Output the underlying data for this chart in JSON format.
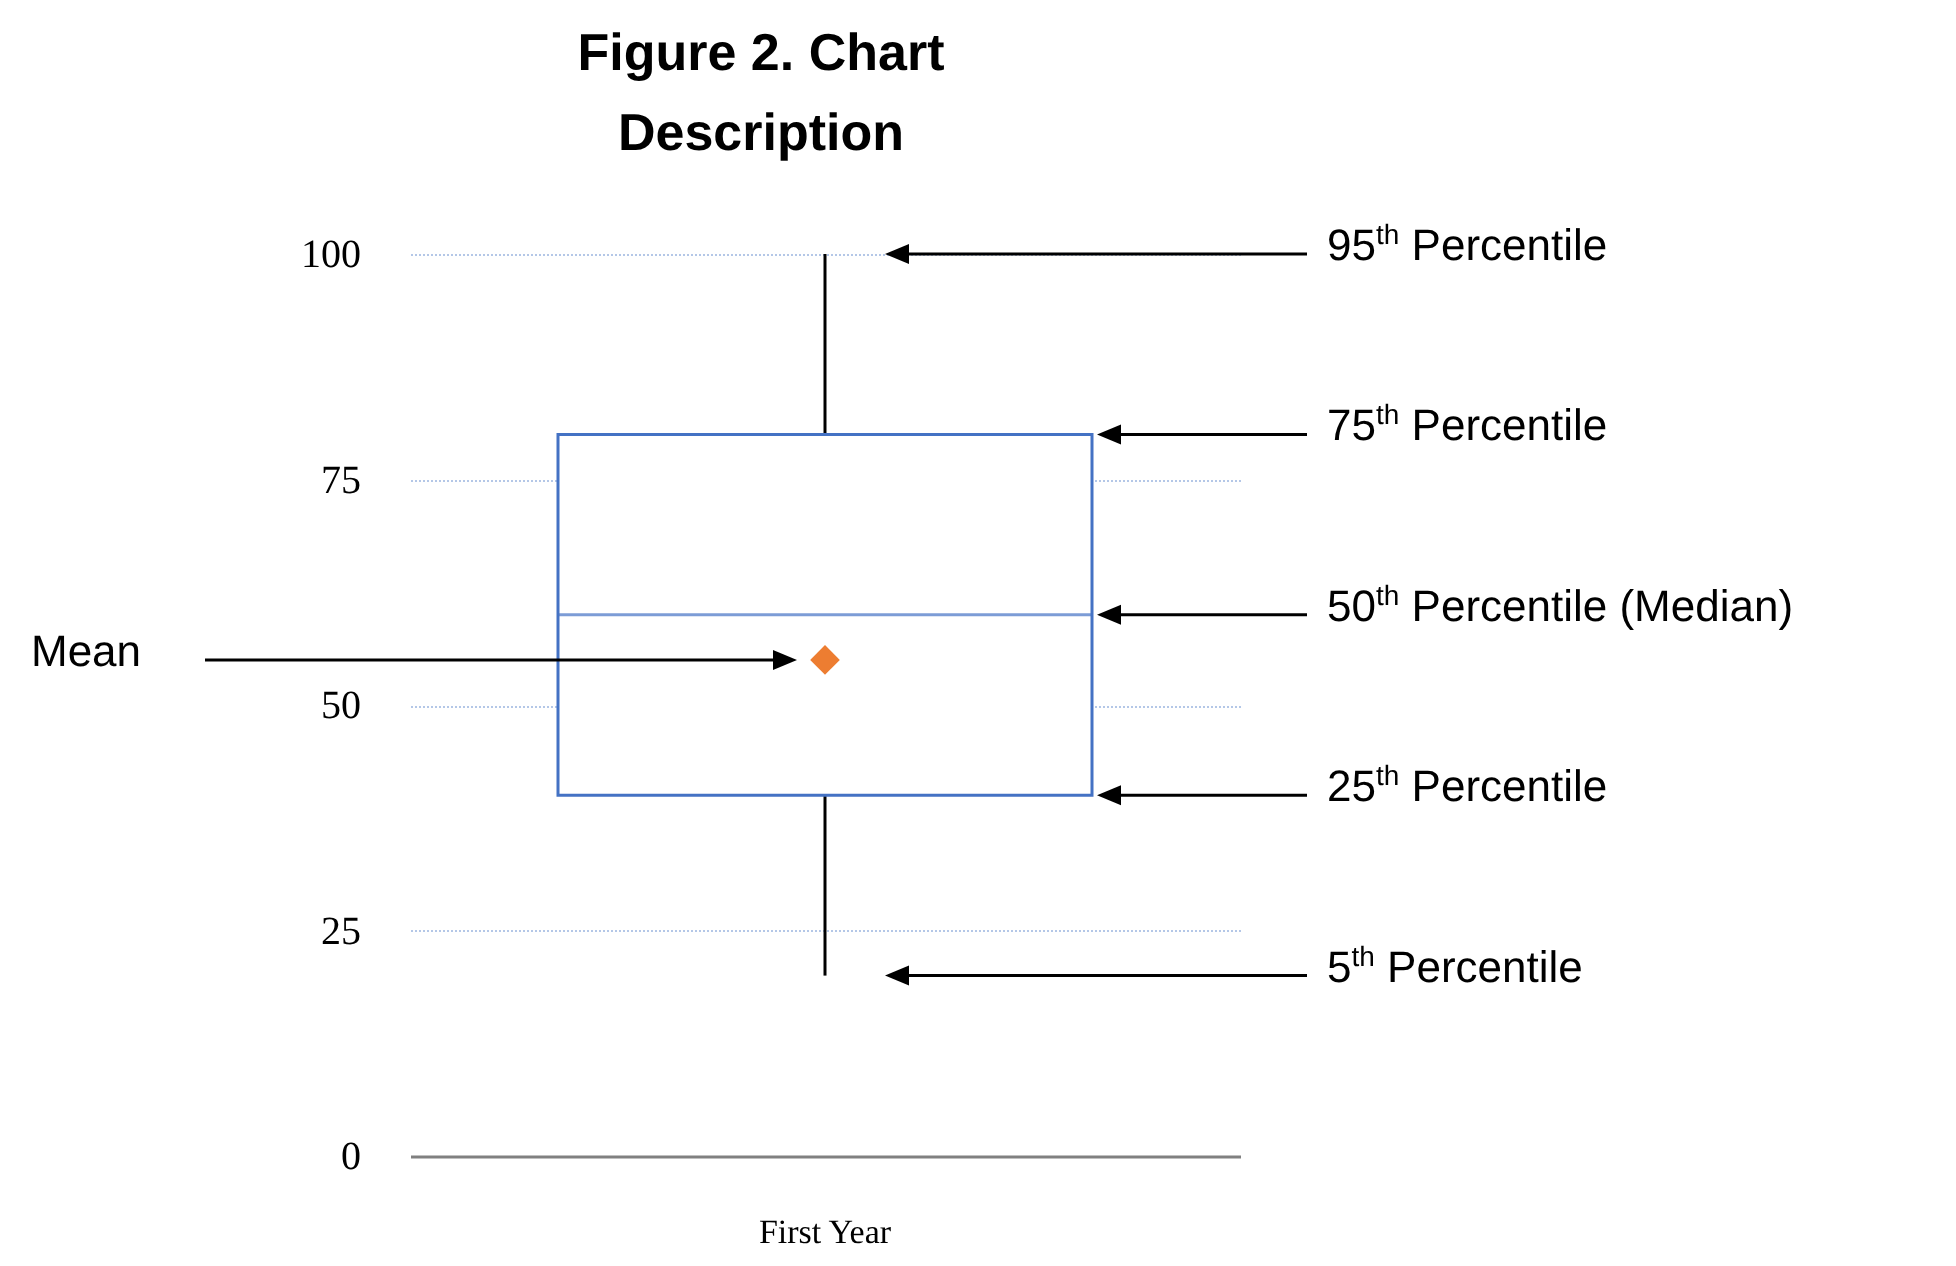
{
  "chart_data": {
    "type": "box",
    "title": "Figure 2.  Chart Description",
    "categories": [
      "First Year"
    ],
    "series": [
      {
        "color": "#4472c4",
        "boxes": [
          {
            "low": 20,
            "q1": 40,
            "median": 60,
            "q3": 80,
            "high": 100,
            "mean": 55
          }
        ]
      }
    ],
    "ylim": [
      0,
      100
    ],
    "yticks": [
      0,
      25,
      50,
      75,
      100
    ],
    "grid": "y",
    "marker": "diamond",
    "annotations": [
      "95$^{th}$ Percentile",
      "75$^{th}$ Percentile",
      "50$^{th}$ Percentile (Median)",
      "25$^{th}$ Percentile",
      "5$^{th}$ Percentile",
      "Mean"
    ]
  }
}
